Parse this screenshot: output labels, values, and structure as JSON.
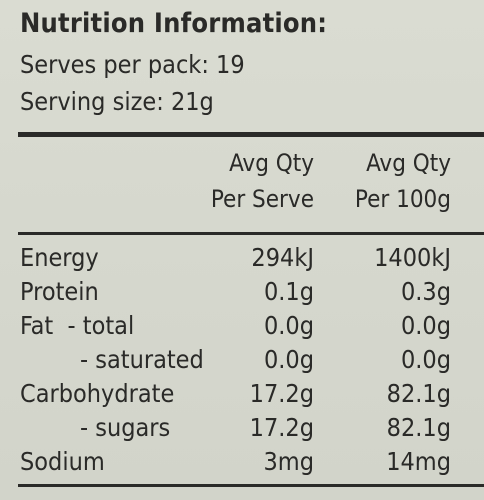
{
  "title": "Nutrition Information:",
  "serves_per_pack": "Serves per pack: 19",
  "serving_size": "Serving size: 21g",
  "columns": {
    "per_serve_line1": "Avg Qty",
    "per_serve_line2": "Per Serve",
    "per_100g_line1": "Avg Qty",
    "per_100g_line2": "Per 100g"
  },
  "rows": [
    {
      "name": "Energy",
      "per_serve": "294kJ",
      "per_100g": "1400kJ"
    },
    {
      "name": "Protein",
      "per_serve": "0.1g",
      "per_100g": "0.3g"
    },
    {
      "name": "Fat  - total",
      "per_serve": "0.0g",
      "per_100g": "0.0g"
    },
    {
      "name": "- saturated",
      "per_serve": "0.0g",
      "per_100g": "0.0g"
    },
    {
      "name": "Carbohydrate",
      "per_serve": "17.2g",
      "per_100g": "82.1g"
    },
    {
      "name": "- sugars",
      "per_serve": "17.2g",
      "per_100g": "82.1g"
    },
    {
      "name": "Sodium",
      "per_serve": "3mg",
      "per_100g": "14mg"
    }
  ]
}
